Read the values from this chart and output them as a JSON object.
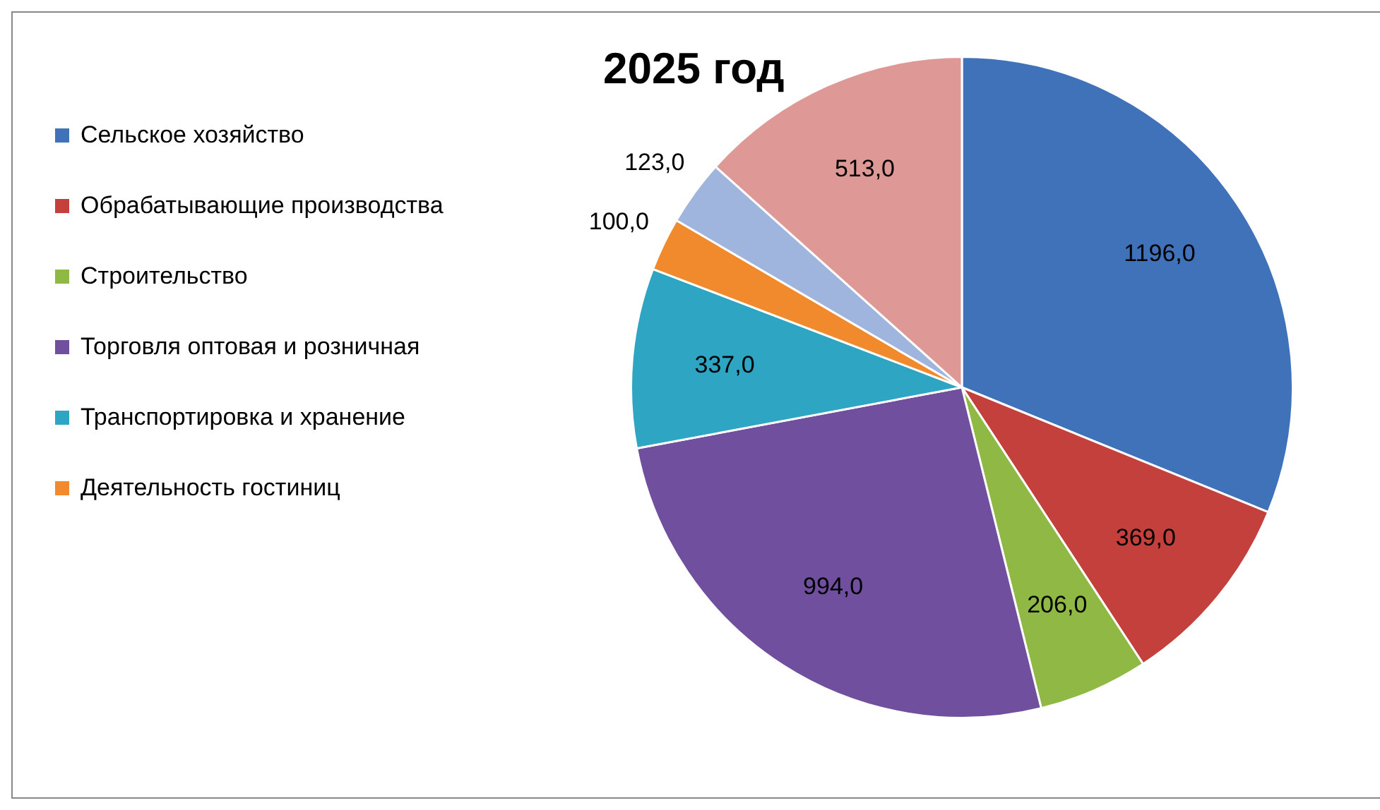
{
  "chart_data": {
    "type": "pie",
    "title": "2025 год",
    "categories": [
      "Сельское хозяйство",
      "Обрабатывающие производства",
      "Строительство",
      "Торговля оптовая и розничная",
      "Транспортировка и хранение",
      "Деятельность гостиниц",
      null,
      null
    ],
    "values": [
      1196,
      369,
      206,
      994,
      337,
      100,
      123,
      513
    ],
    "value_labels": [
      "1196,0",
      "369,0",
      "206,0",
      "994,0",
      "337,0",
      "100,0",
      "123,0",
      "513,0"
    ],
    "colors": [
      "#3f72b8",
      "#c4403d",
      "#8fb844",
      "#6f4f9e",
      "#2ea5c2",
      "#f08a2c",
      "#9fb5de",
      "#de9896"
    ],
    "legend": "left"
  }
}
